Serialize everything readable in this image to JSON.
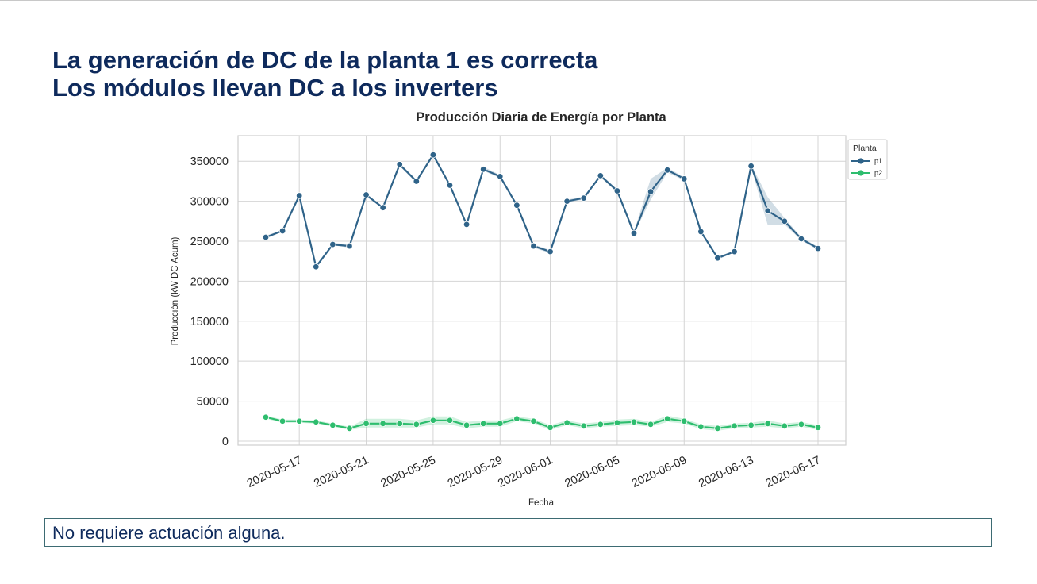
{
  "slide": {
    "headline_line1": "La generación de DC de la planta 1 es correcta",
    "headline_line2": "Los módulos llevan DC a los inverters",
    "note": "No requiere actuación alguna."
  },
  "colors": {
    "headline": "#0e2a5c",
    "p1": "#2f6389",
    "p2": "#2ebd6e",
    "grid": "#d4d4d4",
    "frame": "#cfcfcf"
  },
  "chart_data": {
    "type": "line",
    "title": "Producción Diaria de Energía por Planta",
    "xlabel": "Fecha",
    "ylabel": "Producción (kW DC Acum)",
    "x": [
      "2020-05-15",
      "2020-05-16",
      "2020-05-17",
      "2020-05-18",
      "2020-05-19",
      "2020-05-20",
      "2020-05-21",
      "2020-05-22",
      "2020-05-23",
      "2020-05-24",
      "2020-05-25",
      "2020-05-26",
      "2020-05-27",
      "2020-05-28",
      "2020-05-29",
      "2020-05-30",
      "2020-05-31",
      "2020-06-01",
      "2020-06-02",
      "2020-06-03",
      "2020-06-04",
      "2020-06-05",
      "2020-06-06",
      "2020-06-07",
      "2020-06-08",
      "2020-06-09",
      "2020-06-10",
      "2020-06-11",
      "2020-06-12",
      "2020-06-13",
      "2020-06-14",
      "2020-06-15",
      "2020-06-16",
      "2020-06-17"
    ],
    "x_ticks": [
      "2020-05-17",
      "2020-05-21",
      "2020-05-25",
      "2020-05-29",
      "2020-06-01",
      "2020-06-05",
      "2020-06-09",
      "2020-06-13",
      "2020-06-17"
    ],
    "y_ticks": [
      0,
      50000,
      100000,
      150000,
      200000,
      250000,
      300000,
      350000
    ],
    "y_tick_labels": [
      "0",
      "50000",
      "100000",
      "150000",
      "200000",
      "250000",
      "300000",
      "350000"
    ],
    "ylim": [
      -5000,
      382000
    ],
    "grid": true,
    "legend": {
      "title": "Planta",
      "placement": "top-right-outside"
    },
    "series": [
      {
        "name": "p1",
        "values": [
          255000,
          263000,
          307000,
          218000,
          246000,
          244000,
          308000,
          292000,
          346000,
          325000,
          358000,
          320000,
          271000,
          340000,
          331000,
          295000,
          244000,
          237000,
          300000,
          304000,
          332000,
          313000,
          260000,
          312000,
          339000,
          328000,
          262000,
          229000,
          237000,
          344000,
          288000,
          275000,
          253000,
          241000
        ],
        "band_low": [
          253000,
          262000,
          305000,
          217000,
          245000,
          242000,
          306000,
          291000,
          344000,
          323000,
          356000,
          319000,
          270000,
          338000,
          329000,
          294000,
          242000,
          235000,
          299000,
          302000,
          330000,
          311000,
          259000,
          302000,
          336000,
          326000,
          261000,
          227000,
          236000,
          342000,
          270000,
          271000,
          251000,
          239000
        ],
        "band_high": [
          257000,
          264000,
          309000,
          220000,
          248000,
          246000,
          310000,
          293000,
          348000,
          327000,
          360000,
          322000,
          272000,
          343000,
          333000,
          296000,
          246000,
          239000,
          302000,
          306000,
          334000,
          315000,
          262000,
          328000,
          342000,
          330000,
          264000,
          231000,
          238000,
          346000,
          305000,
          279000,
          255000,
          243000
        ]
      },
      {
        "name": "p2",
        "values": [
          30000,
          25000,
          25000,
          24000,
          20000,
          16000,
          22000,
          22000,
          22000,
          21000,
          26000,
          26000,
          20000,
          22000,
          22000,
          28000,
          25000,
          17000,
          23000,
          19000,
          21000,
          23000,
          24000,
          21000,
          28000,
          25000,
          18000,
          16000,
          19000,
          20000,
          22000,
          19000,
          21000,
          17000
        ],
        "band_low": [
          28000,
          23000,
          23000,
          22000,
          18000,
          14000,
          17000,
          17000,
          17000,
          17000,
          21000,
          21000,
          16000,
          18000,
          18000,
          25000,
          22000,
          14000,
          20000,
          16000,
          18000,
          19000,
          20000,
          18000,
          24000,
          22000,
          15000,
          13000,
          16000,
          17000,
          18000,
          16000,
          18000,
          14000
        ],
        "band_high": [
          32000,
          27000,
          27000,
          26000,
          22000,
          18000,
          28000,
          28000,
          28000,
          26000,
          31000,
          31000,
          24000,
          26000,
          26000,
          31000,
          28000,
          20000,
          26000,
          22000,
          24000,
          27000,
          28000,
          24000,
          32000,
          28000,
          21000,
          19000,
          22000,
          23000,
          26000,
          22000,
          24000,
          20000
        ]
      }
    ]
  }
}
